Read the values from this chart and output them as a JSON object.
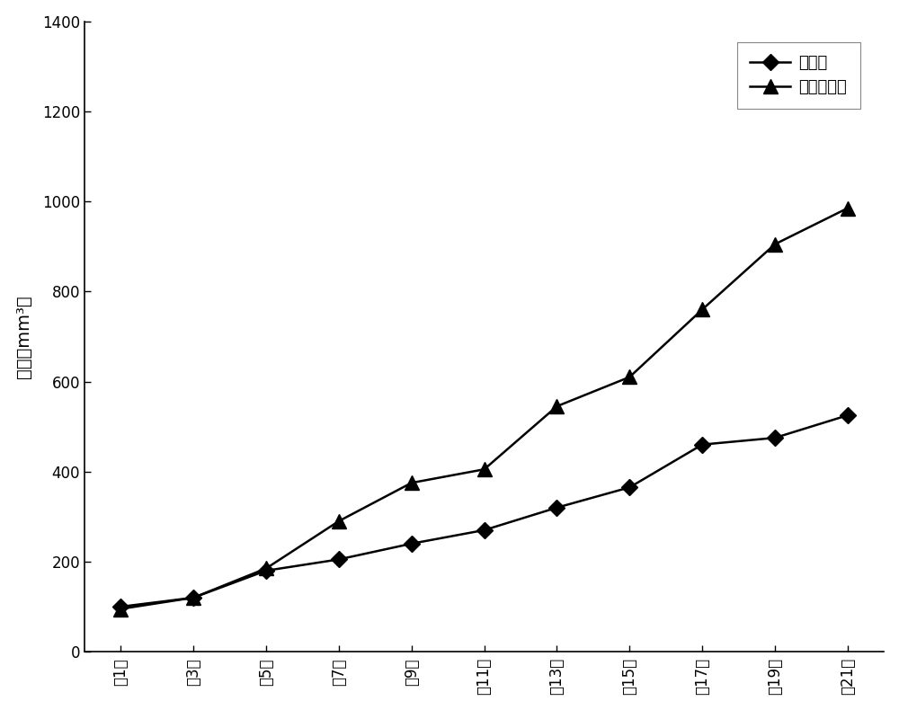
{
  "x_labels": [
    "第1天",
    "第3天",
    "第5天",
    "第7天",
    "第9天",
    "第11天",
    "第13天",
    "第15天",
    "第17天",
    "第19天",
    "第21天"
  ],
  "treatment_y": [
    100,
    120,
    180,
    205,
    240,
    270,
    320,
    365,
    460,
    475,
    525
  ],
  "control_y": [
    95,
    120,
    185,
    290,
    375,
    405,
    545,
    610,
    760,
    905,
    985
  ],
  "ylabel": "体积（mm³）",
  "ylim": [
    0,
    1400
  ],
  "yticks": [
    0,
    200,
    400,
    600,
    800,
    1000,
    1200,
    1400
  ],
  "legend_treatment": "治疗组",
  "legend_control": "阴性对照组",
  "line_color": "#000000",
  "marker_treatment": "D",
  "marker_control": "^",
  "marker_size_treatment": 9,
  "marker_size_control": 11,
  "linewidth": 1.8,
  "bg_color": "#ffffff",
  "label_fontsize": 14,
  "tick_fontsize": 12,
  "legend_fontsize": 13
}
